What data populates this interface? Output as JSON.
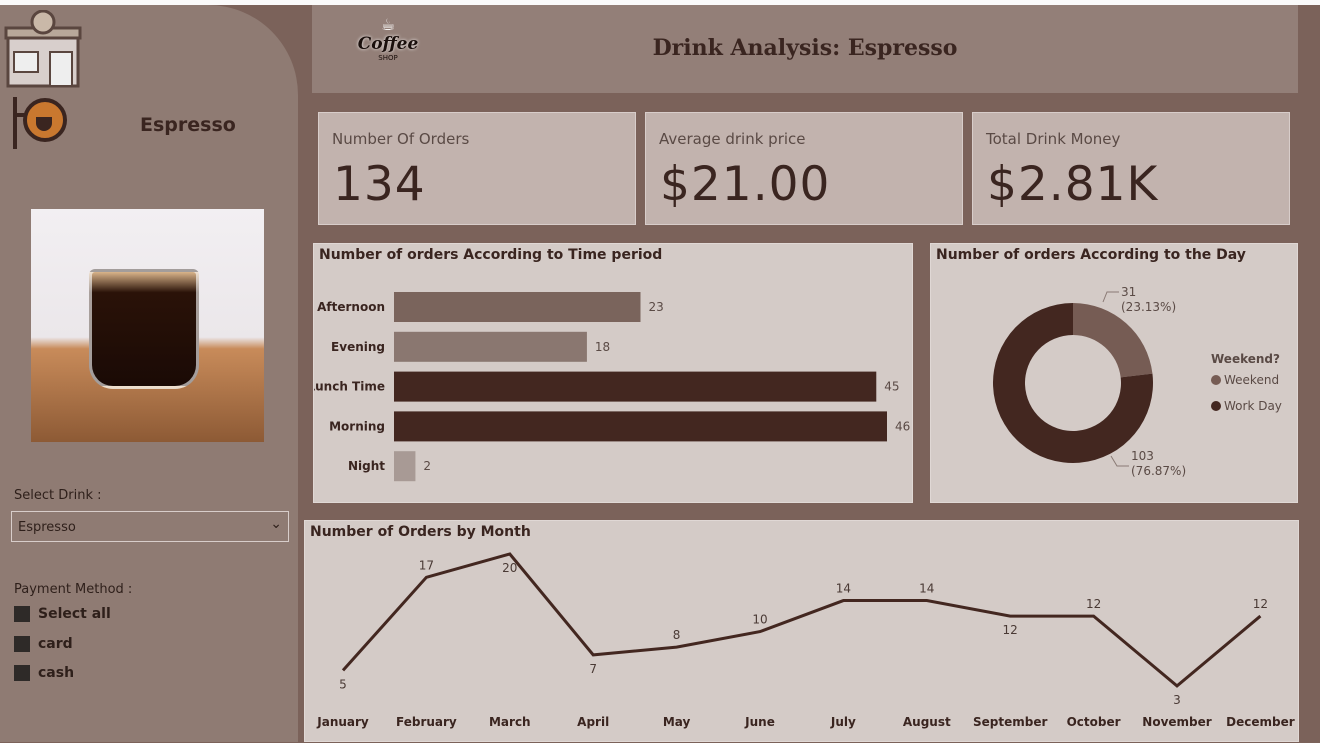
{
  "header": {
    "title": "Drink Analysis: Espresso",
    "logo_text": "Coffee SHOP"
  },
  "sidebar": {
    "drink_name": "Espresso",
    "select_label": "Select Drink :",
    "select_value": "Espresso",
    "payment_label": "Payment Method :",
    "payment_options": [
      "Select all",
      "card",
      "cash"
    ]
  },
  "kpis": [
    {
      "label": "Number Of Orders",
      "value": "134"
    },
    {
      "label": "Average drink price",
      "value": "$21.00"
    },
    {
      "label": "Total Drink Money",
      "value": "$2.81K"
    }
  ],
  "chart_data": [
    {
      "type": "bar",
      "title": "Number of orders According to Time period",
      "categories": [
        "Afternoon",
        "Evening",
        "Lunch Time",
        "Morning",
        "Night"
      ],
      "values": [
        23,
        18,
        45,
        46,
        2
      ],
      "colors": [
        "#7a645c",
        "#8a7770",
        "#432720",
        "#432720",
        "#a89a95"
      ]
    },
    {
      "type": "pie",
      "title": "Number of orders According to the Day",
      "legend_title": "Weekend?",
      "slices": [
        {
          "name": "Weekend",
          "value": 31,
          "label": "31",
          "pct": "(23.13%)",
          "color": "#765c54"
        },
        {
          "name": "Work Day",
          "value": 103,
          "label": "103",
          "pct": "(76.87%)",
          "color": "#432720"
        }
      ],
      "legend": "right"
    },
    {
      "type": "line",
      "title": "Number of Orders by Month",
      "categories": [
        "January",
        "February",
        "March",
        "April",
        "May",
        "June",
        "July",
        "August",
        "September",
        "October",
        "November",
        "December"
      ],
      "values": [
        5,
        17,
        20,
        7,
        8,
        10,
        14,
        14,
        12,
        12,
        3,
        12
      ],
      "color": "#432720"
    }
  ]
}
